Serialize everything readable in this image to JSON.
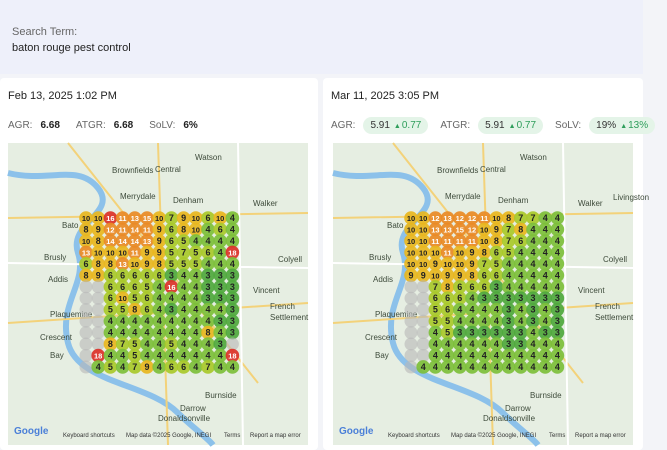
{
  "header": {
    "label": "Search Term:",
    "term": "baton rouge pest control"
  },
  "panels": [
    {
      "date": "Feb 13, 2025 1:02 PM",
      "metrics": [
        {
          "label": "AGR:",
          "value": "6.68"
        },
        {
          "label": "ATGR:",
          "value": "6.68"
        },
        {
          "label": "SoLV:",
          "value": "6%"
        }
      ],
      "grid": [
        [
          10,
          10,
          16,
          11,
          13,
          15,
          10,
          7,
          9,
          10,
          6,
          10,
          4
        ],
        [
          8,
          9,
          12,
          11,
          14,
          11,
          9,
          6,
          8,
          10,
          4,
          6,
          4
        ],
        [
          10,
          8,
          14,
          14,
          14,
          13,
          9,
          6,
          5,
          4,
          4,
          4,
          4
        ],
        [
          13,
          10,
          10,
          10,
          11,
          9,
          9,
          5,
          7,
          5,
          6,
          4,
          18
        ],
        [
          6,
          8,
          8,
          13,
          10,
          9,
          8,
          5,
          5,
          5,
          4,
          4,
          4
        ],
        [
          8,
          9,
          6,
          6,
          6,
          6,
          6,
          3,
          4,
          4,
          3,
          3,
          3
        ],
        [
          null,
          null,
          6,
          6,
          6,
          5,
          4,
          16,
          4,
          4,
          3,
          3,
          3
        ],
        [
          null,
          null,
          6,
          10,
          5,
          6,
          4,
          4,
          4,
          4,
          3,
          3,
          3
        ],
        [
          null,
          null,
          5,
          5,
          8,
          6,
          4,
          3,
          4,
          4,
          4,
          4,
          3
        ],
        [
          null,
          null,
          4,
          4,
          4,
          4,
          4,
          4,
          4,
          4,
          4,
          3,
          3
        ],
        [
          null,
          null,
          4,
          4,
          4,
          4,
          4,
          4,
          4,
          4,
          8,
          4,
          3
        ],
        [
          null,
          null,
          8,
          7,
          5,
          4,
          4,
          5,
          4,
          4,
          4,
          3,
          null
        ],
        [
          null,
          18,
          4,
          4,
          5,
          4,
          4,
          4,
          4,
          4,
          4,
          4,
          18
        ],
        [
          null,
          4,
          5,
          4,
          7,
          9,
          4,
          6,
          6,
          4,
          7,
          4,
          4
        ]
      ],
      "map_labels": [
        "Watson",
        "Brownfields",
        "Central",
        "Merrydale",
        "Denham",
        "Walker",
        "Bato",
        "Brusly",
        "Colyell",
        "Addis",
        "Vincent",
        "French",
        "Settlement",
        "Plaquemine",
        "Crescent",
        "Bay",
        "Burnside",
        "Darrow",
        "Donaldsonville"
      ],
      "map_footer": [
        "Google",
        "Keyboard shortcuts",
        "Map data ©2025 Google, INEGI",
        "Terms",
        "Report a map error"
      ]
    },
    {
      "date": "Mar 11, 2025 3:05 PM",
      "metrics": [
        {
          "label": "AGR:",
          "value": "5.91",
          "delta": "0.77"
        },
        {
          "label": "ATGR:",
          "value": "5.91",
          "delta": "0.77"
        },
        {
          "label": "SoLV:",
          "value": "19%",
          "delta": "13%"
        }
      ],
      "grid": [
        [
          10,
          10,
          12,
          13,
          12,
          12,
          11,
          10,
          8,
          7,
          7,
          4,
          4
        ],
        [
          10,
          10,
          13,
          13,
          15,
          12,
          10,
          9,
          7,
          8,
          4,
          4,
          4
        ],
        [
          10,
          10,
          11,
          11,
          11,
          11,
          10,
          8,
          7,
          6,
          4,
          4,
          4
        ],
        [
          10,
          10,
          10,
          11,
          10,
          9,
          8,
          6,
          5,
          4,
          4,
          4,
          4
        ],
        [
          10,
          10,
          9,
          10,
          10,
          9,
          7,
          5,
          4,
          4,
          4,
          4,
          4
        ],
        [
          9,
          9,
          10,
          9,
          9,
          8,
          6,
          6,
          4,
          4,
          4,
          4,
          4
        ],
        [
          null,
          null,
          7,
          8,
          6,
          6,
          6,
          3,
          4,
          4,
          4,
          4,
          4
        ],
        [
          null,
          null,
          6,
          6,
          6,
          4,
          3,
          3,
          3,
          3,
          3,
          3,
          3
        ],
        [
          null,
          null,
          5,
          6,
          4,
          4,
          4,
          4,
          3,
          4,
          3,
          4,
          3
        ],
        [
          null,
          null,
          5,
          5,
          4,
          4,
          4,
          4,
          3,
          4,
          3,
          4,
          3
        ],
        [
          null,
          null,
          4,
          5,
          3,
          3,
          3,
          3,
          3,
          3,
          4,
          3,
          3
        ],
        [
          null,
          null,
          4,
          4,
          4,
          4,
          4,
          4,
          3,
          3,
          4,
          4,
          4
        ],
        [
          null,
          null,
          4,
          4,
          4,
          4,
          4,
          4,
          4,
          4,
          4,
          4,
          4
        ],
        [
          null,
          4,
          4,
          4,
          4,
          4,
          4,
          4,
          4,
          4,
          4,
          4,
          4
        ]
      ],
      "map_labels": [
        "Watson",
        "Brownfields",
        "Central",
        "Merrydale",
        "Denham",
        "Walker",
        "Bato",
        "Brusly",
        "Colyell",
        "Addis",
        "Vincent",
        "French",
        "Settlement",
        "Plaquemine",
        "Crescent",
        "Bay",
        "Burnside",
        "Darrow",
        "Donaldsonville",
        "Livingston"
      ],
      "map_footer": [
        "Google",
        "Keyboard shortcuts",
        "Map data ©2025 Google, INEGI",
        "Terms",
        "Report a map error"
      ]
    }
  ]
}
